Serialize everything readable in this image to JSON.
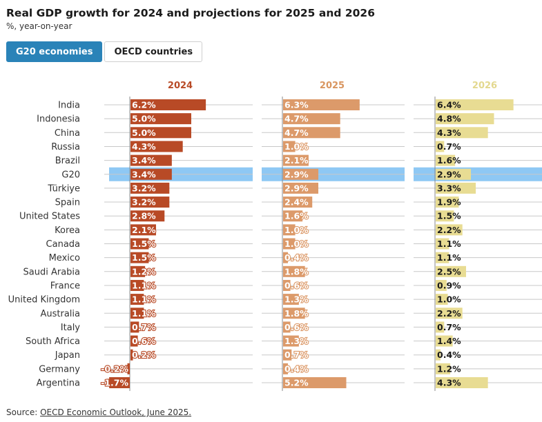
{
  "title": "Real GDP growth for 2024 and projections for 2025 and 2026",
  "subtitle": "%, year-on-year",
  "tabs": [
    {
      "label": "G20 economies",
      "active": true
    },
    {
      "label": "OECD countries",
      "active": false
    }
  ],
  "source": {
    "prefix": "Source: ",
    "link_text": "OECD Economic Outlook, June 2025."
  },
  "colors": {
    "2024": "#b84a26",
    "2025": "#dc9a6a",
    "2026": "#e8dc93",
    "highlight": "#8ec8f4",
    "header_2024": "#b84a26",
    "header_2025": "#d9955f",
    "header_2026": "#e3d88e",
    "active_tab": "#2a83b8"
  },
  "chart_data": {
    "type": "bar",
    "orientation": "horizontal",
    "highlight_category": "G20",
    "categories": [
      "India",
      "Indonesia",
      "China",
      "Russia",
      "Brazil",
      "G20",
      "Türkiye",
      "Spain",
      "United States",
      "Korea",
      "Canada",
      "Mexico",
      "Saudi Arabia",
      "France",
      "United Kingdom",
      "Australia",
      "Italy",
      "South Africa",
      "Japan",
      "Germany",
      "Argentina"
    ],
    "series": [
      {
        "name": "2024",
        "values": [
          6.2,
          5.0,
          5.0,
          4.3,
          3.4,
          3.4,
          3.2,
          3.2,
          2.8,
          2.1,
          1.5,
          1.5,
          1.2,
          1.1,
          1.1,
          1.1,
          0.7,
          0.6,
          0.2,
          -0.2,
          -1.7
        ]
      },
      {
        "name": "2025",
        "values": [
          6.3,
          4.7,
          4.7,
          1.0,
          2.1,
          2.9,
          2.9,
          2.4,
          1.6,
          1.0,
          1.0,
          0.4,
          1.8,
          0.6,
          1.3,
          1.8,
          0.6,
          1.3,
          0.7,
          0.4,
          5.2
        ]
      },
      {
        "name": "2026",
        "values": [
          6.4,
          4.8,
          4.3,
          0.7,
          1.6,
          2.9,
          3.3,
          1.9,
          1.5,
          2.2,
          1.1,
          1.1,
          2.5,
          0.9,
          1.0,
          2.2,
          0.7,
          1.4,
          0.4,
          1.2,
          4.3
        ]
      }
    ],
    "value_suffix": "%"
  }
}
